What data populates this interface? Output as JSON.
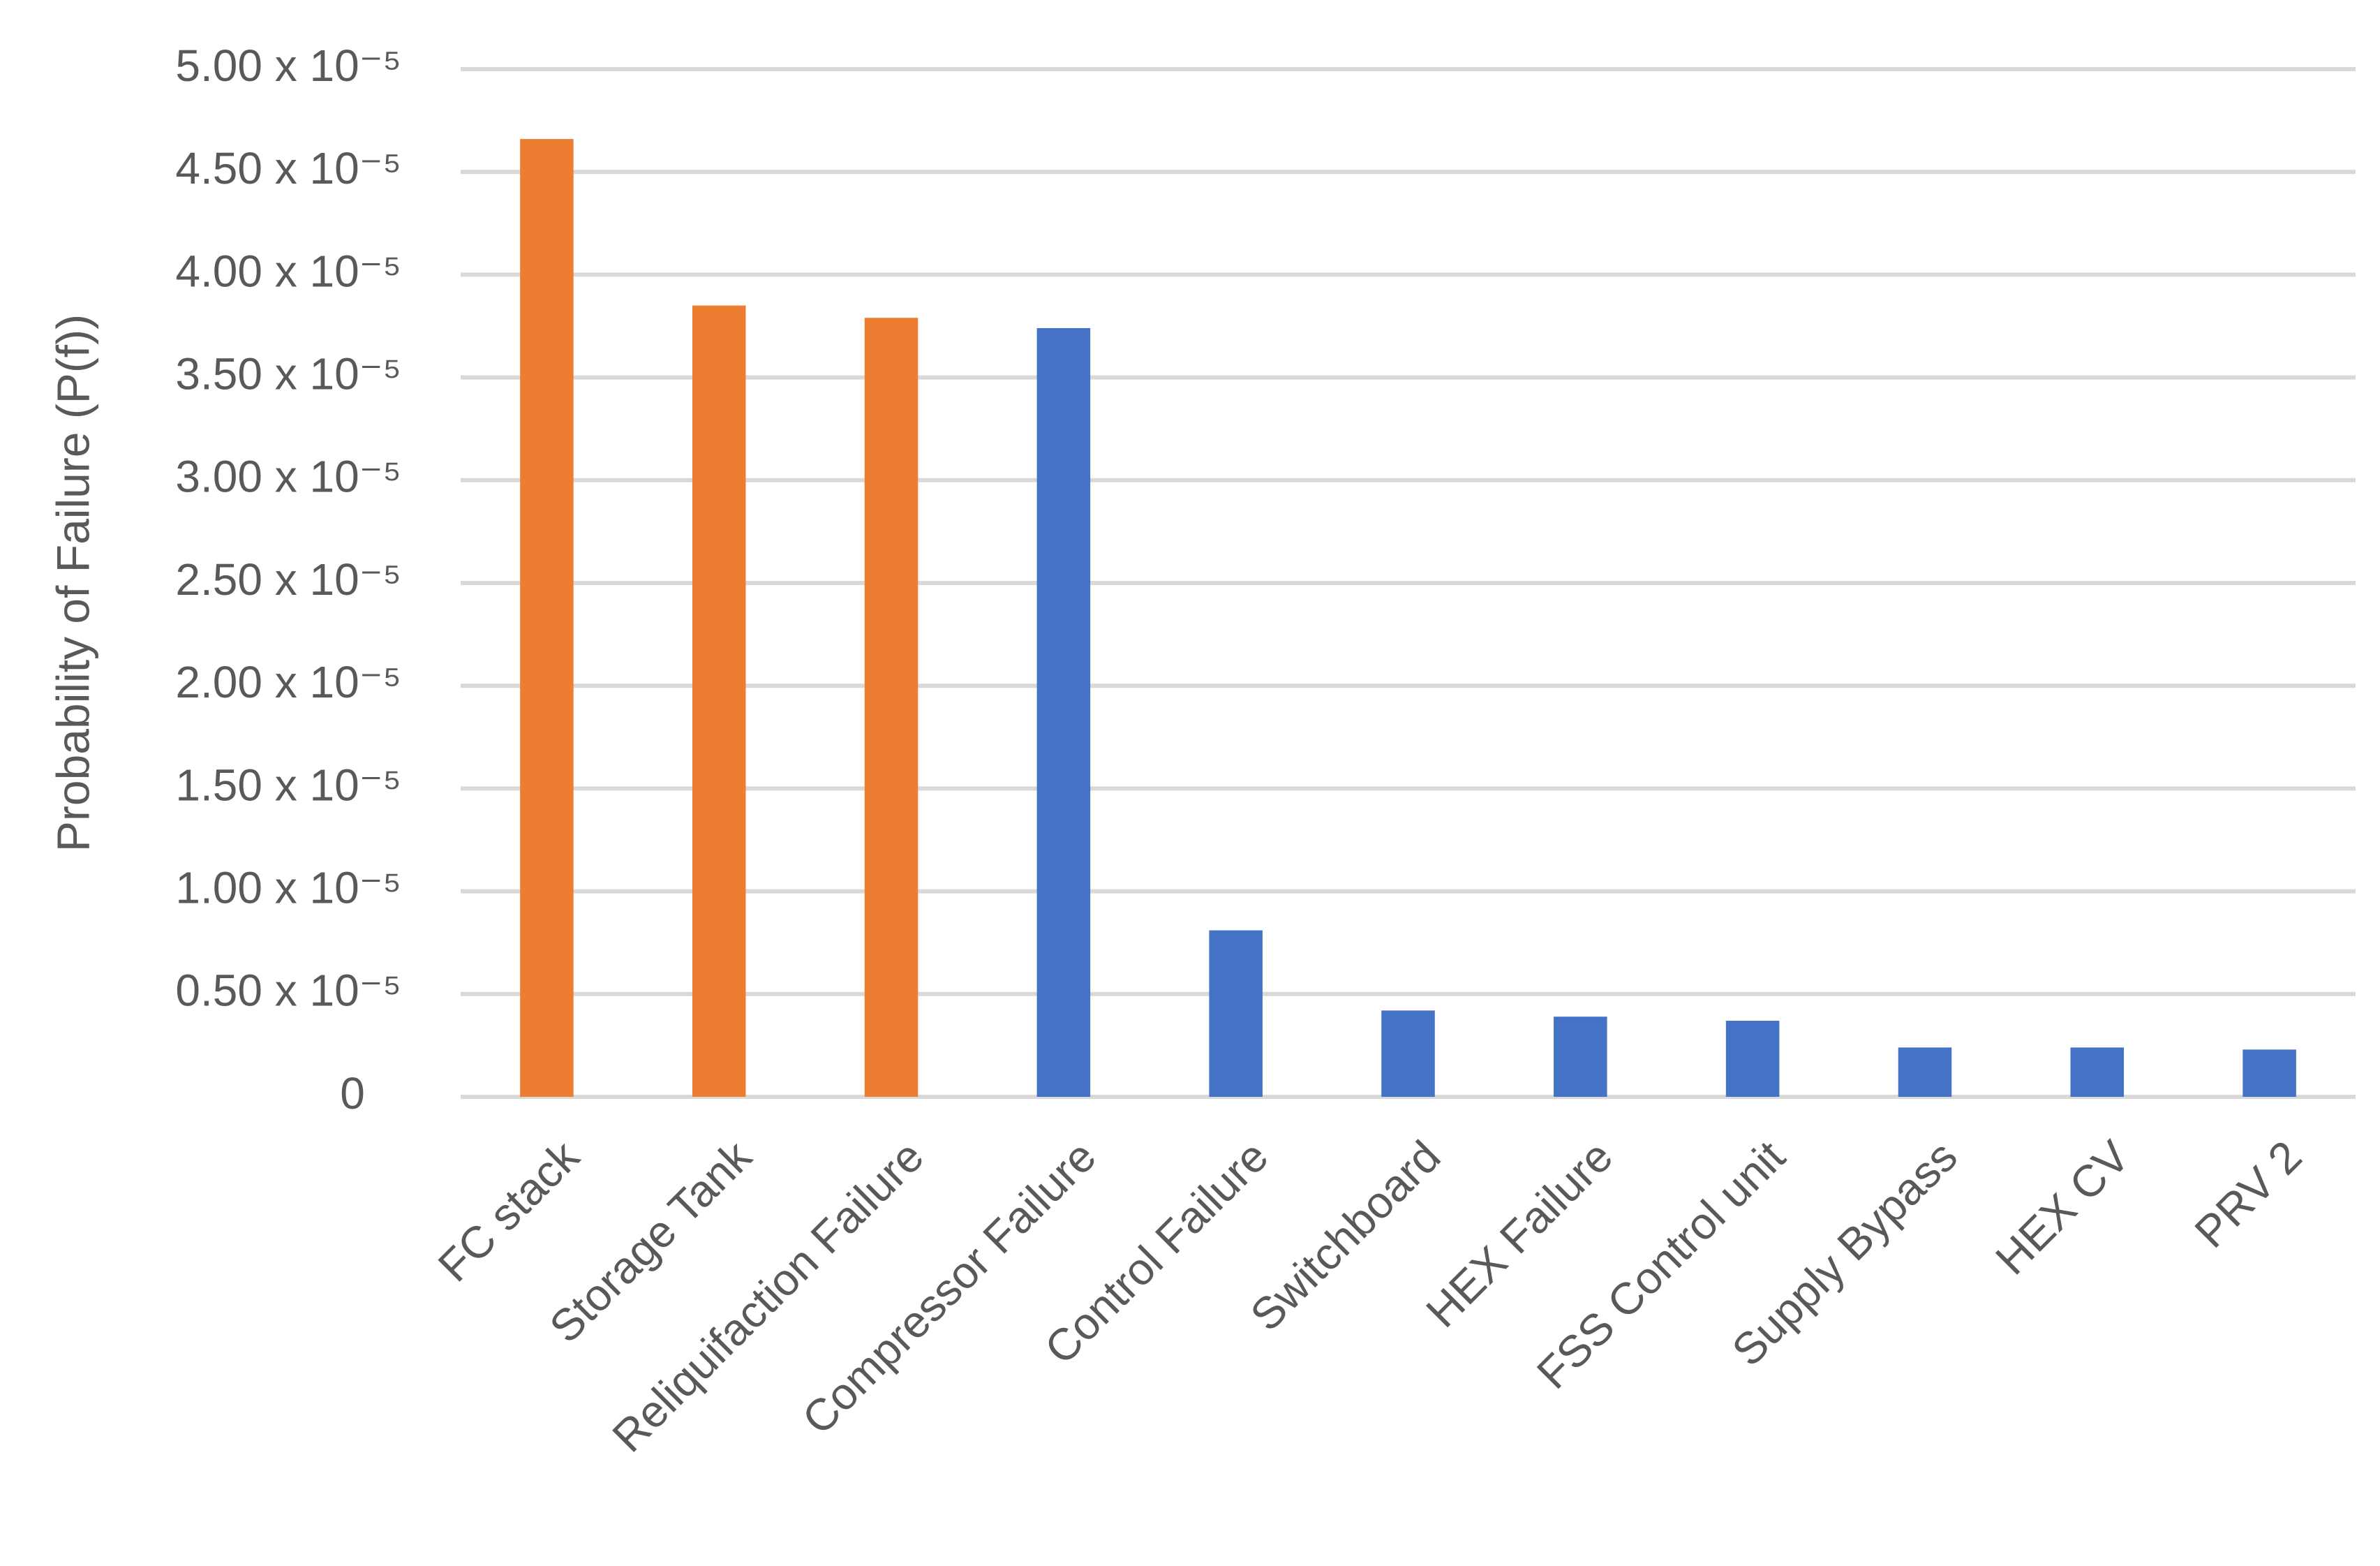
{
  "chart_data": {
    "type": "bar",
    "y_label": "Probability of Failure (P(f))",
    "categories": [
      "FC stack",
      "Storage Tank",
      "Reliquifaction Failure",
      "Compressor Failure",
      "Control Failure",
      "Switchboard",
      "HEX Failure",
      "FSS Control unit",
      "Supply Bypass",
      "HEX CV",
      "PRV 2"
    ],
    "values": [
      4.66e-05,
      3.85e-05,
      3.79e-05,
      3.74e-05,
      8.1e-06,
      4.2e-06,
      3.9e-06,
      3.7e-06,
      2.4e-06,
      2.4e-06,
      2.3e-06
    ],
    "colors": [
      "#ED7D31",
      "#ED7D31",
      "#ED7D31",
      "#4472C4",
      "#4472C4",
      "#4472C4",
      "#4472C4",
      "#4472C4",
      "#4472C4",
      "#4472C4",
      "#4472C4"
    ],
    "ylim": [
      0,
      5e-05
    ],
    "yticks": [
      0,
      {
        "value": 5e-06,
        "label": "0.50 x 10⁻⁵"
      },
      {
        "value": 1e-05,
        "label": "1.00 x 10⁻⁵"
      },
      {
        "value": 1.5e-05,
        "label": "1.50 x 10⁻⁵"
      },
      {
        "value": 2e-05,
        "label": "2.00 x 10⁻⁵"
      },
      {
        "value": 2.5e-05,
        "label": "2.50 x 10⁻⁵"
      },
      {
        "value": 3e-05,
        "label": "3.00 x 10⁻⁵"
      },
      {
        "value": 3.5e-05,
        "label": "3.50 x 10⁻⁵"
      },
      {
        "value": 4e-05,
        "label": "4.00 x 10⁻⁵"
      },
      {
        "value": 4.5e-05,
        "label": "4.50 x 10⁻⁵"
      },
      {
        "value": 5e-05,
        "label": "5.00 x 10⁻⁵"
      }
    ],
    "grid": true
  }
}
